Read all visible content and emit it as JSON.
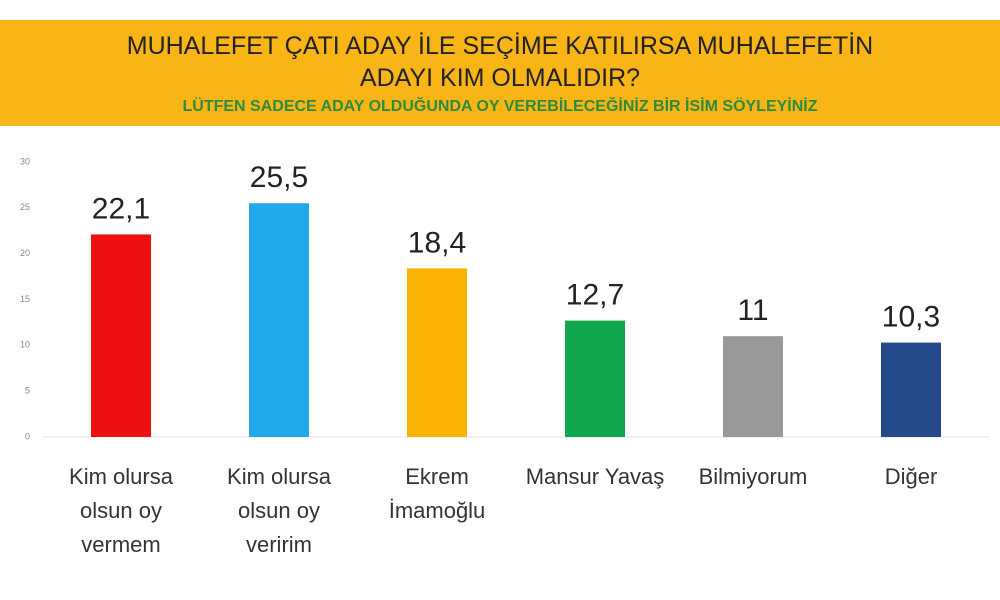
{
  "chart_data": {
    "type": "bar",
    "title": "MUHALEFET ÇATI ADAY İLE SEÇİME KATILIRSA MUHALEFETİN ADAYI KIM OLMALIDIR?",
    "subtitle": "LÜTFEN SADECE ADAY OLDUĞUNDA OY VEREBİLECEĞİNİZ BİR İSİM SÖYLEYİNİZ",
    "categories": [
      "Kim olursa olsun oy vermem",
      "Kim olursa olsun oy veririm",
      "Ekrem İmamoğlu",
      "Mansur Yavaş",
      "Bilmiyorum",
      "Diğer"
    ],
    "values": [
      22.1,
      25.5,
      18.4,
      12.7,
      11,
      10.3
    ],
    "value_labels": [
      "22,1",
      "25,5",
      "18,4",
      "12,7",
      "11",
      "10,3"
    ],
    "colors": [
      "#ee1111",
      "#1fa8ea",
      "#fbb203",
      "#10a84c",
      "#999999",
      "#244a8c"
    ],
    "ylim": [
      0,
      30
    ],
    "yticks": [
      0,
      5,
      10,
      15,
      20,
      25,
      30
    ],
    "grid": false
  }
}
